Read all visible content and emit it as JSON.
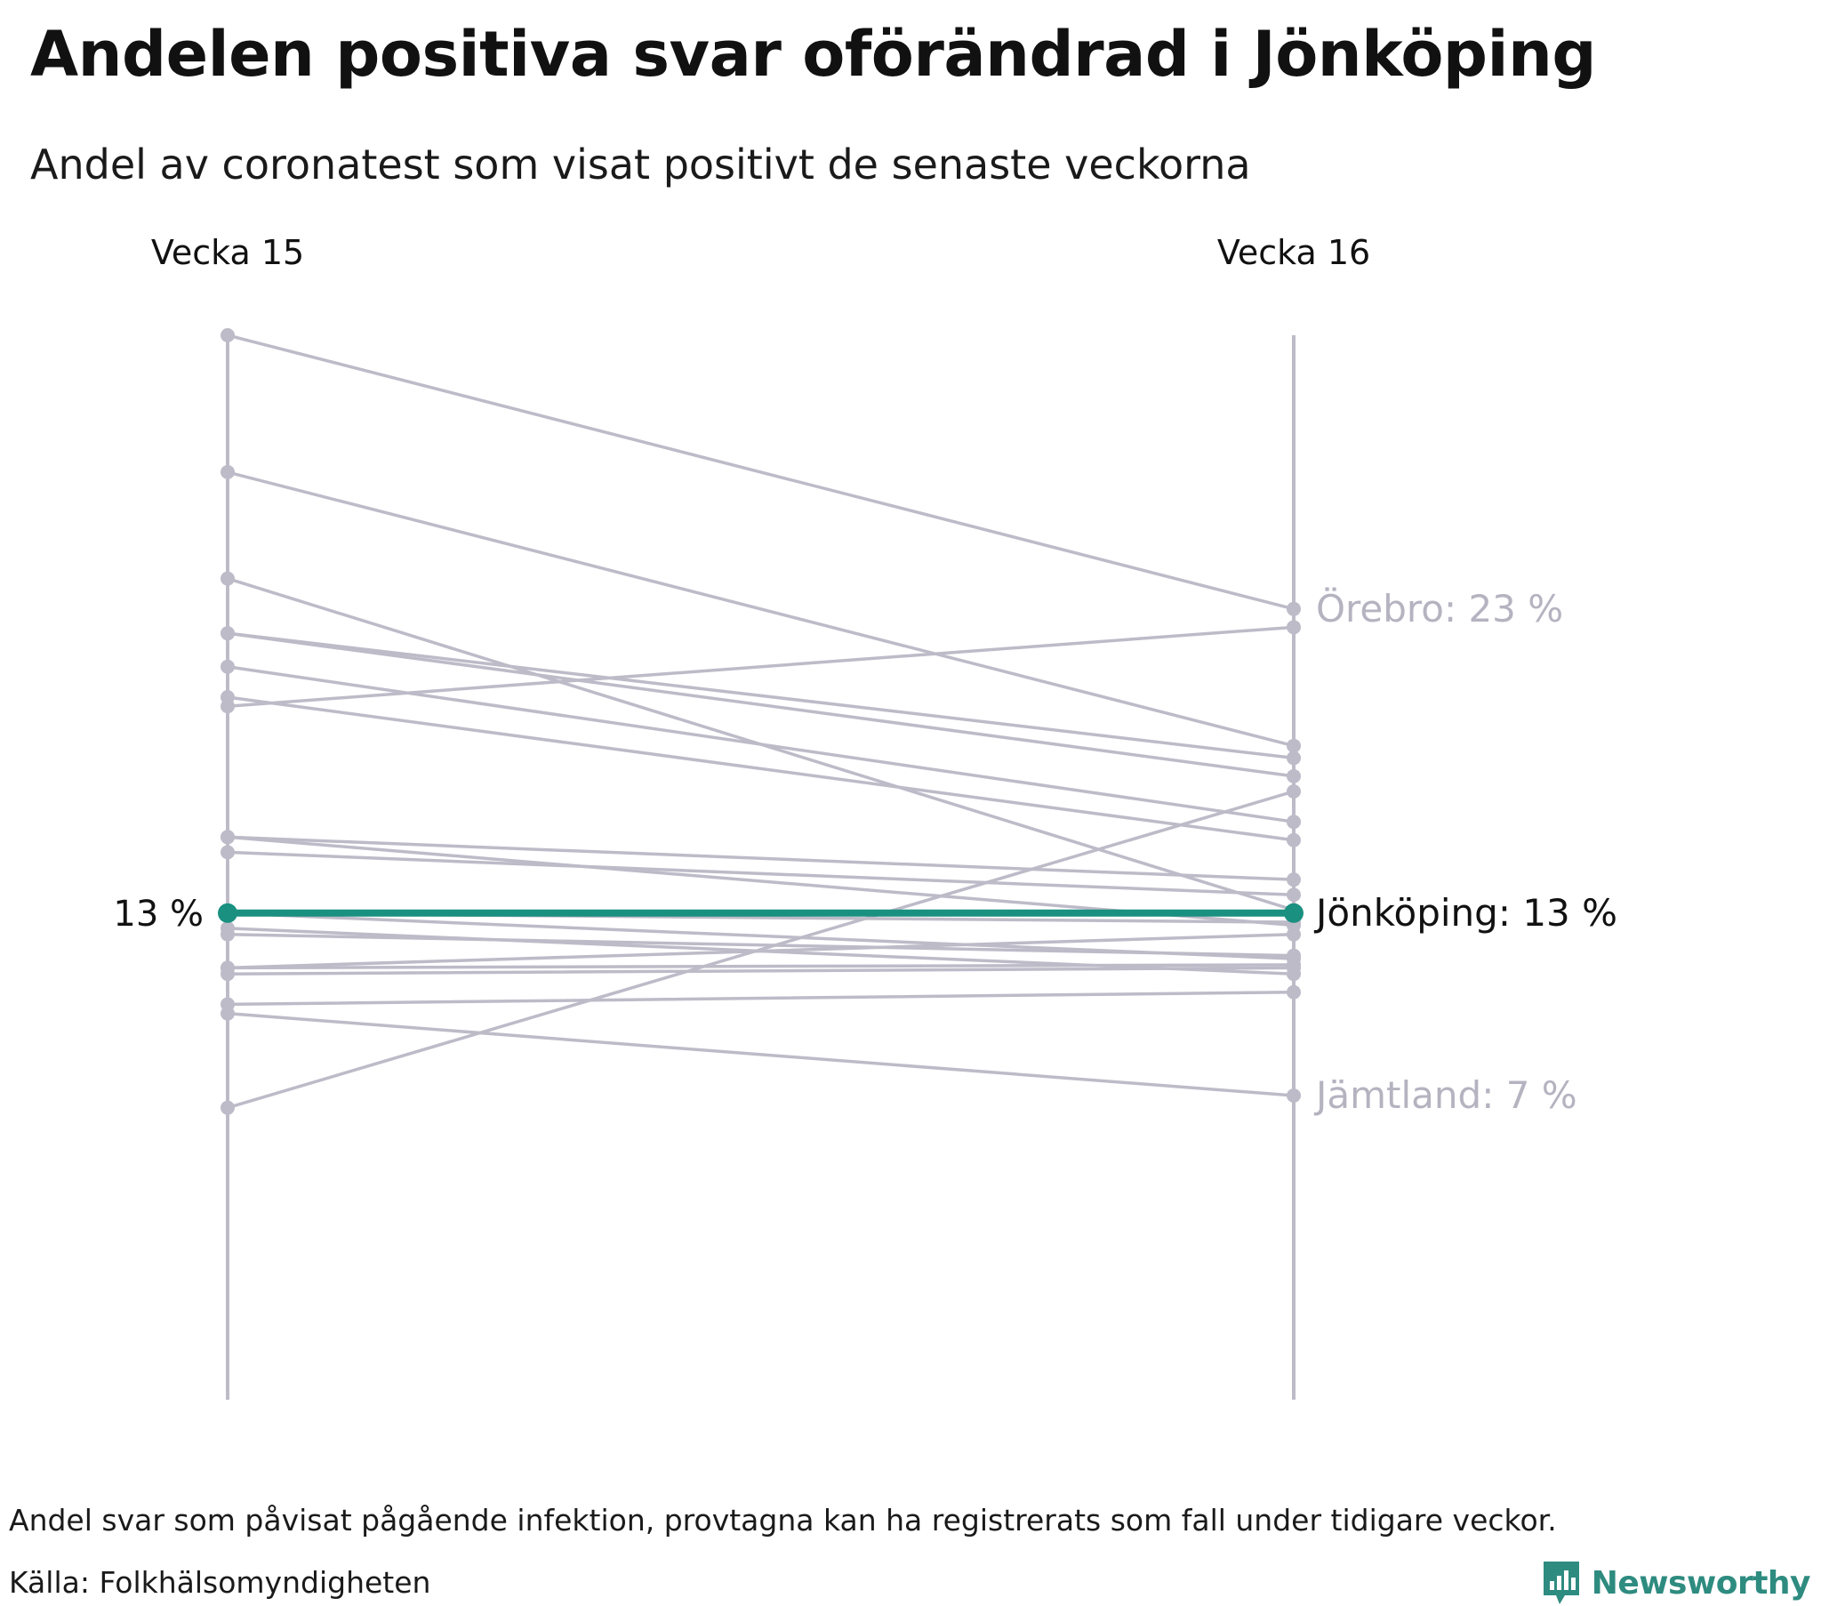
{
  "header": {
    "title": "Andelen positiva svar oförändrad i Jönköping",
    "subtitle": "Andel av coronatest som visat positivt de senaste veckorna"
  },
  "footer": {
    "note": "Andel svar som påvisat pågående infektion, provtagna kan ha registrerats som fall under tidigare veckor.",
    "source": "Källa: Folkhälsomyndigheten",
    "brand": "Newsworthy"
  },
  "colors": {
    "highlight": "#1a9080",
    "other": "#bdbbc8",
    "label_other": "#b5b3c0",
    "text": "#111111",
    "brand": "#2e8b80"
  },
  "chart_data": {
    "type": "line",
    "x": [
      "Vecka 15",
      "Vecka 16"
    ],
    "ylim": [
      -3,
      32
    ],
    "grid": false,
    "highlight": {
      "name": "Jönköping",
      "values": [
        13,
        13
      ],
      "start_label": "13 %",
      "end_label": "Jönköping: 13 %"
    },
    "labelled": [
      {
        "name": "Örebro",
        "values": [
          32,
          23
        ],
        "end_label": "Örebro: 23 %"
      },
      {
        "name": "Jämtland",
        "values": [
          9.7,
          7
        ],
        "end_label": "Jämtland: 7 %"
      }
    ],
    "others": [
      [
        27.5,
        18.5
      ],
      [
        24.0,
        13.1
      ],
      [
        22.2,
        17.5
      ],
      [
        22.2,
        18.1
      ],
      [
        21.1,
        16.0
      ],
      [
        20.1,
        15.4
      ],
      [
        19.8,
        22.4
      ],
      [
        15.5,
        14.1
      ],
      [
        15.0,
        13.6
      ],
      [
        13.0,
        12.7
      ],
      [
        12.3,
        11.6
      ],
      [
        11.2,
        12.3
      ],
      [
        11.0,
        11.2
      ],
      [
        10.0,
        10.4
      ],
      [
        6.6,
        17.0
      ],
      [
        15.5,
        12.6
      ],
      [
        13.0,
        11.5
      ],
      [
        11.2,
        11.3
      ],
      [
        12.5,
        11.0
      ]
    ]
  }
}
